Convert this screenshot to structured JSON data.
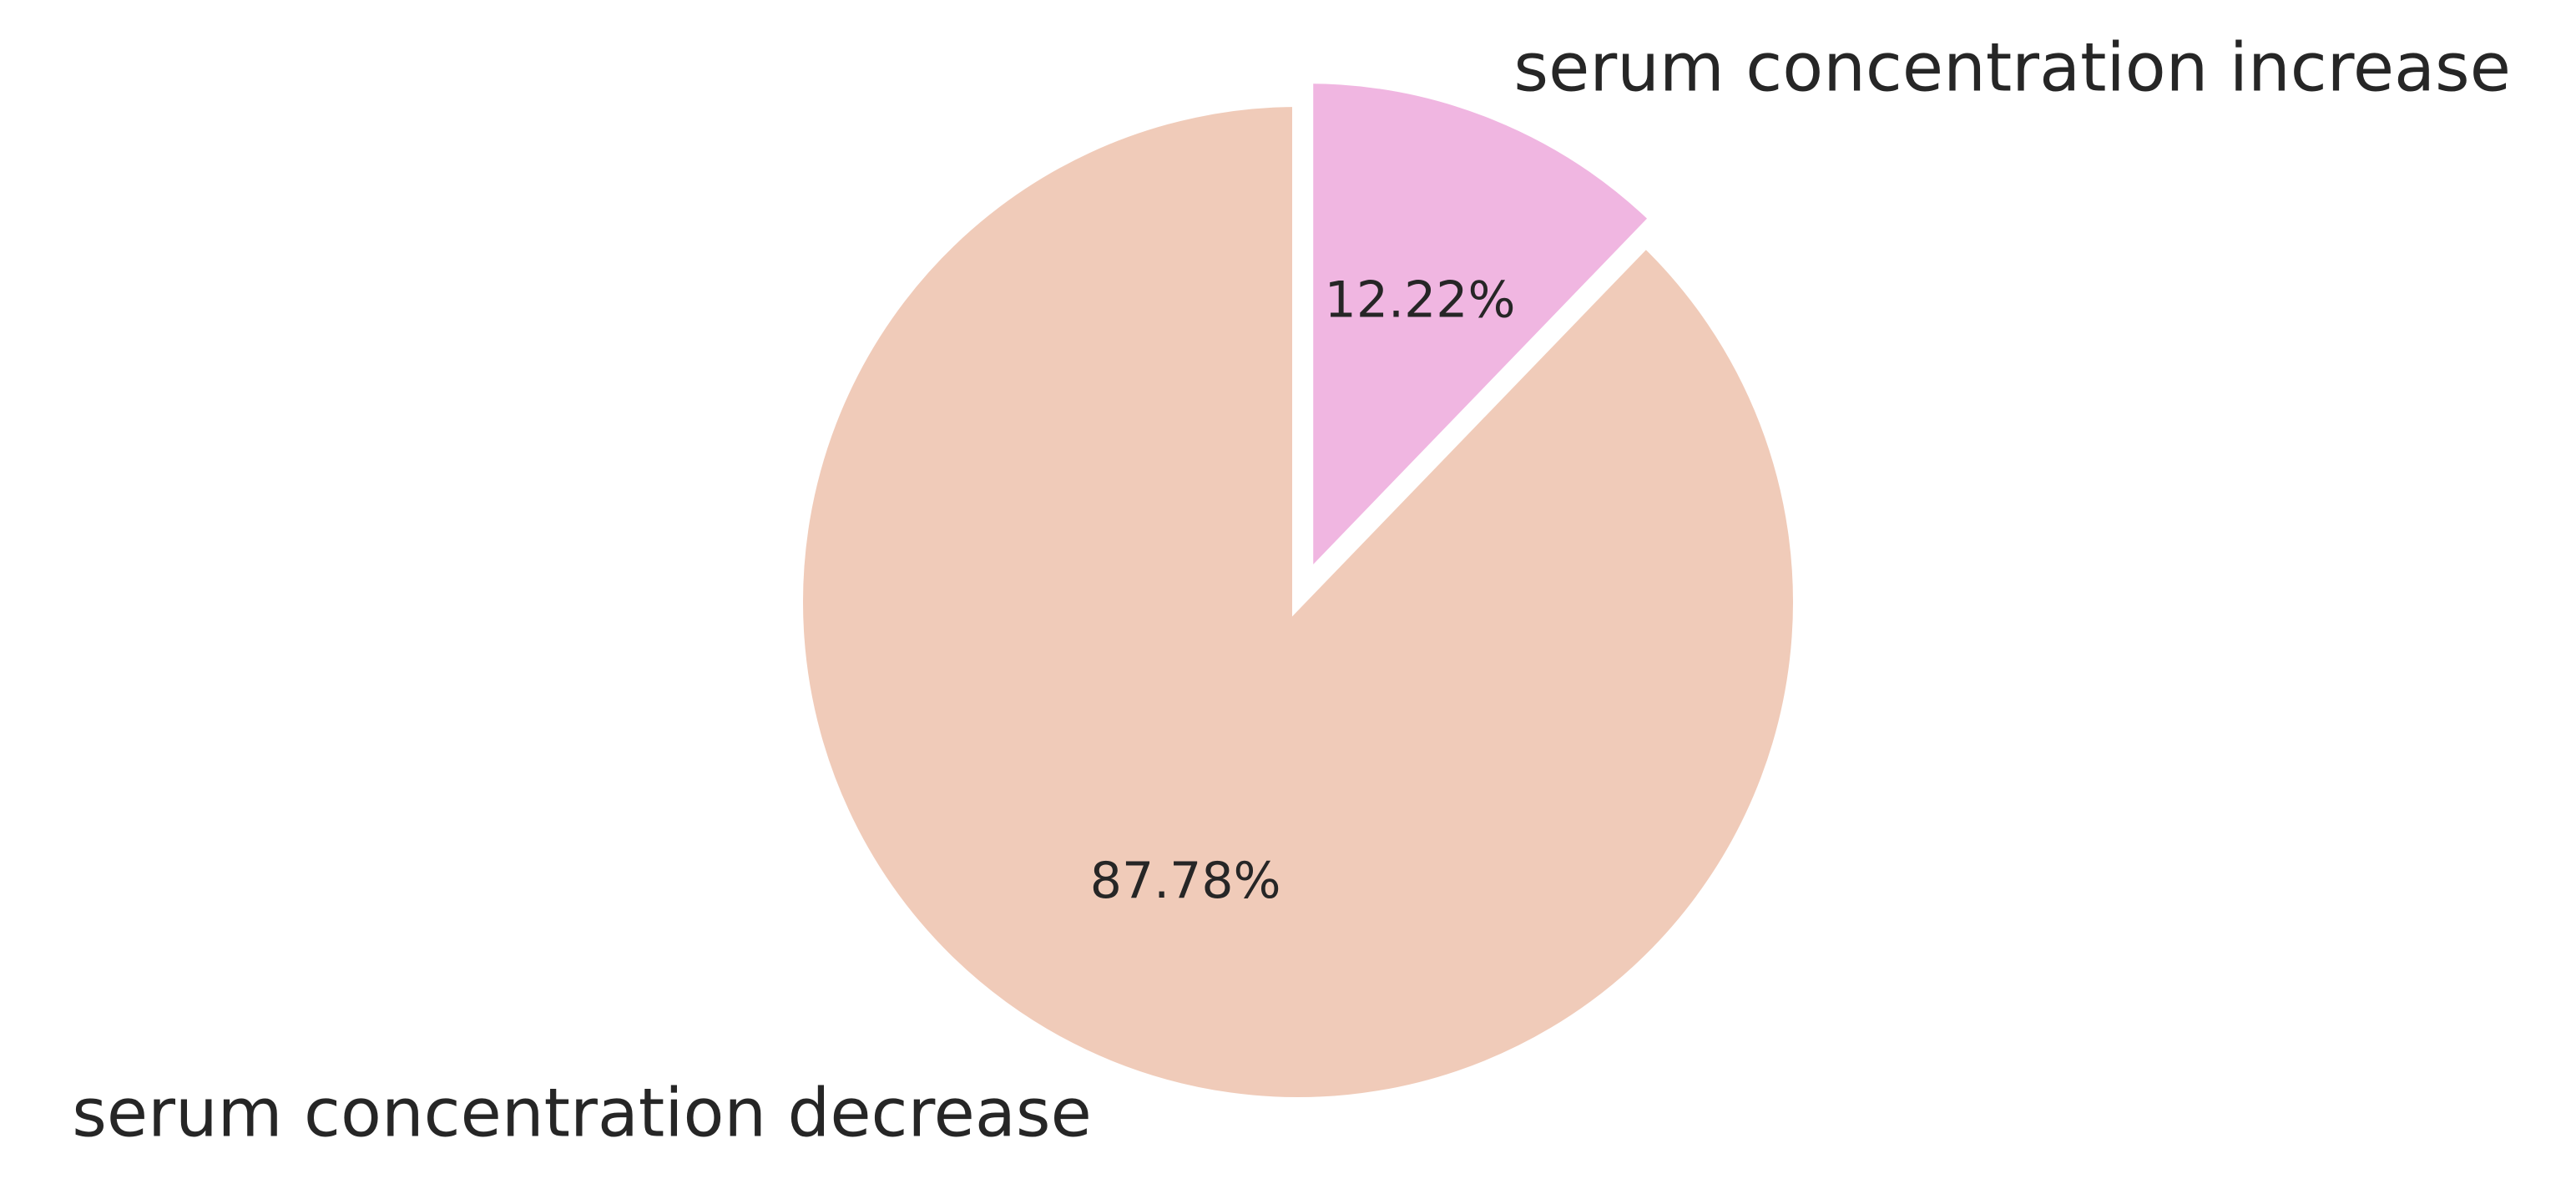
{
  "chart_data": {
    "type": "pie",
    "start_angle_deg": 90,
    "direction": "clockwise",
    "slices": [
      {
        "label": "serum concentration increase",
        "value": 12.22,
        "pct_label": "12.22%",
        "color": "#f0b6e1",
        "exploded": true
      },
      {
        "label": "serum concentration decrease",
        "value": 87.78,
        "pct_label": "87.78%",
        "color": "#f0cbb9",
        "exploded": false
      }
    ]
  }
}
